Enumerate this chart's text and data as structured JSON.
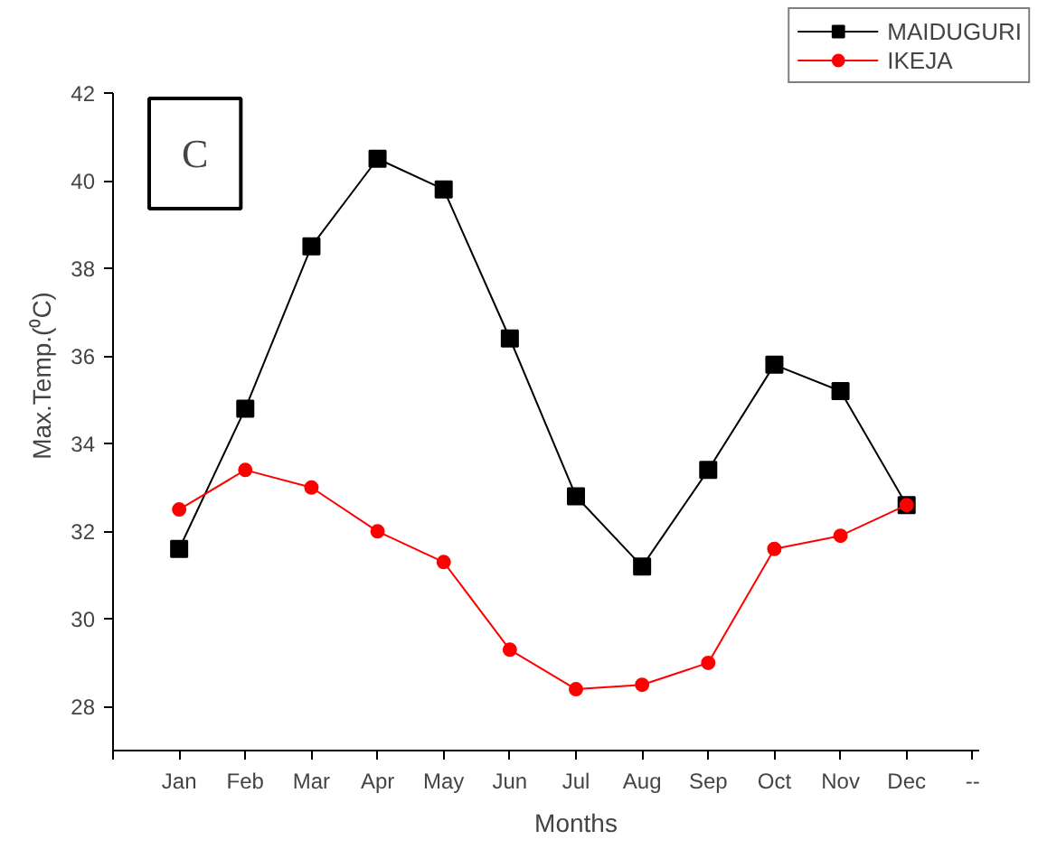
{
  "chart_data": {
    "type": "line",
    "xlabel": "Months",
    "ylabel": "Max.Temp.(⁰C)",
    "annotations": [
      "C"
    ],
    "categories": [
      null,
      "Jan",
      "Feb",
      "Mar",
      "Apr",
      "May",
      "Jun",
      "Jul",
      "Aug",
      "Sep",
      "Oct",
      "Nov",
      "Dec",
      "--"
    ],
    "series": [
      {
        "name": "MAIDUGURI",
        "color": "#000000",
        "marker": "square",
        "values": [
          null,
          31.6,
          34.8,
          38.5,
          40.5,
          39.8,
          36.4,
          32.8,
          31.2,
          33.4,
          35.8,
          35.2,
          32.6,
          null
        ]
      },
      {
        "name": "IKEJA",
        "color": "#ff0000",
        "marker": "circle",
        "values": [
          null,
          32.5,
          33.4,
          33.0,
          32.0,
          31.3,
          29.3,
          28.4,
          28.5,
          29.0,
          31.6,
          31.9,
          32.6,
          null
        ]
      }
    ],
    "ylim": [
      27,
      42
    ],
    "yticks": [
      28,
      30,
      32,
      34,
      36,
      38,
      40,
      42
    ],
    "grid": false,
    "legend": "top right",
    "line_style": "solid"
  }
}
